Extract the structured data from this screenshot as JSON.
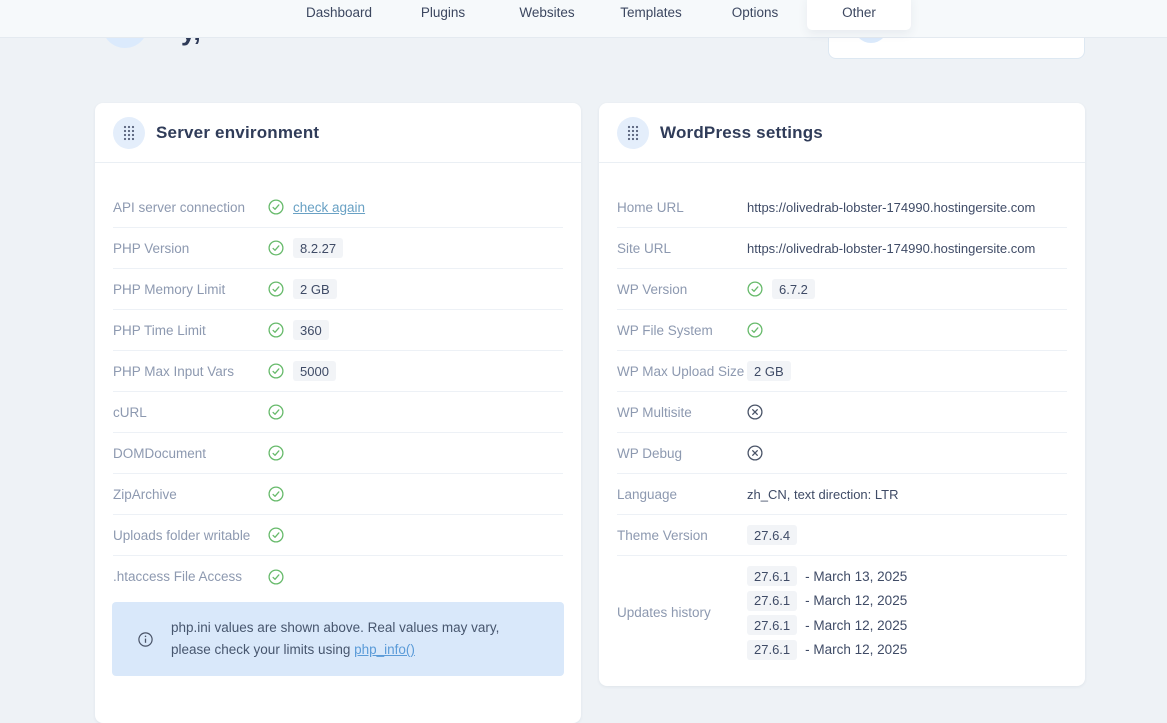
{
  "nav": {
    "items": [
      {
        "label": "Dashboard",
        "active": false
      },
      {
        "label": "Plugins",
        "active": false
      },
      {
        "label": "Websites",
        "active": false
      },
      {
        "label": "Templates",
        "active": false
      },
      {
        "label": "Options",
        "active": false
      },
      {
        "label": "Other",
        "active": true
      }
    ]
  },
  "header": {
    "greeting_fragment": "y,"
  },
  "colors": {
    "accent_green": "#67ba6b",
    "icon_dark": "#4a5468",
    "link_blue": "#5b9bd8",
    "check_again_link": "#69a1c4",
    "notice_bg": "#d9e8fa",
    "avatar_bg": "#dbeafc",
    "page_bg": "#eef2f6"
  },
  "icons": {
    "check": "circled-green-checkmark",
    "cross": "circled-x",
    "grid": "dot-grid-handle",
    "info": "info-circle"
  },
  "panels": {
    "server": {
      "title": "Server environment",
      "rows": [
        {
          "label": "API server connection",
          "icon": "check",
          "link": "check again"
        },
        {
          "label": "PHP Version",
          "icon": "check",
          "chip": "8.2.27"
        },
        {
          "label": "PHP Memory Limit",
          "icon": "check",
          "chip": "2 GB"
        },
        {
          "label": "PHP Time Limit",
          "icon": "check",
          "chip": "360"
        },
        {
          "label": "PHP Max Input Vars",
          "icon": "check",
          "chip": "5000"
        },
        {
          "label": "cURL",
          "icon": "check"
        },
        {
          "label": "DOMDocument",
          "icon": "check"
        },
        {
          "label": "ZipArchive",
          "icon": "check"
        },
        {
          "label": "Uploads folder writable",
          "icon": "check"
        },
        {
          "label": ".htaccess File Access",
          "icon": "check"
        }
      ],
      "notice": {
        "line1": "php.ini values are shown above. Real values may vary,",
        "line2_prefix": "please check your limits using ",
        "link_label": "php_info()"
      }
    },
    "wordpress": {
      "title": "WordPress settings",
      "rows": [
        {
          "label": "Home URL",
          "text": "https://olivedrab-lobster-174990.hostingersite.com"
        },
        {
          "label": "Site URL",
          "text": "https://olivedrab-lobster-174990.hostingersite.com"
        },
        {
          "label": "WP Version",
          "icon": "check",
          "chip": "6.7.2"
        },
        {
          "label": "WP File System",
          "icon": "check"
        },
        {
          "label": "WP Max Upload Size",
          "chip": "2 GB"
        },
        {
          "label": "WP Multisite",
          "icon": "cross"
        },
        {
          "label": "WP Debug",
          "icon": "cross"
        },
        {
          "label": "Language",
          "text": "zh_CN, text direction: LTR"
        },
        {
          "label": "Theme Version",
          "chip": "27.6.4"
        },
        {
          "label": "Updates history",
          "history": [
            {
              "version": "27.6.1",
              "date": "- March 13, 2025"
            },
            {
              "version": "27.6.1",
              "date": "- March 12, 2025"
            },
            {
              "version": "27.6.1",
              "date": "- March 12, 2025"
            },
            {
              "version": "27.6.1",
              "date": "- March 12, 2025"
            }
          ]
        }
      ]
    }
  }
}
